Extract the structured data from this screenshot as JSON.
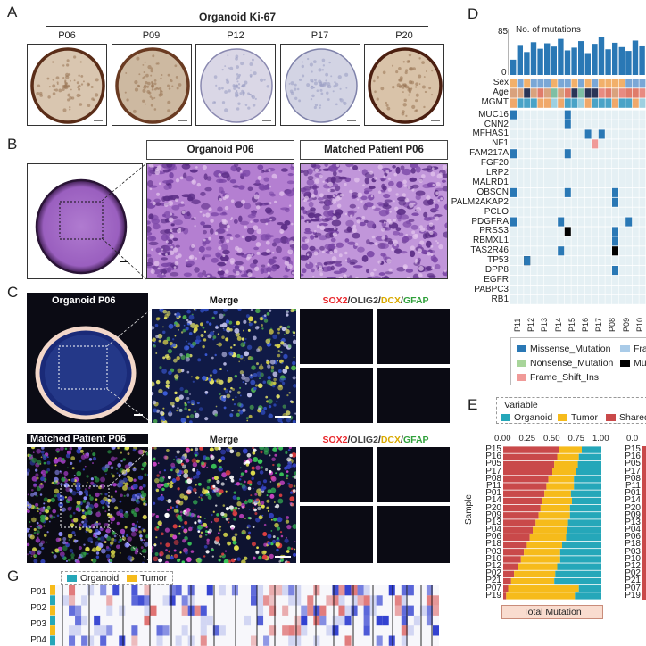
{
  "panel_labels": {
    "a": "A",
    "b": "B",
    "c": "C",
    "d": "D",
    "e": "E",
    "g": "G"
  },
  "panel_a": {
    "title": "Organoid  Ki-67",
    "samples": [
      "P06",
      "P09",
      "P12",
      "P17",
      "P20"
    ]
  },
  "panel_b": {
    "title_left": "Organoid P06",
    "title_right": "Matched Patient P06"
  },
  "panel_c": {
    "organoid_label": "Organoid P06",
    "patient_label": "Matched Patient P06",
    "merge_label": "Merge",
    "marker_sox2": "SOX2",
    "marker_olig2": "OLIG2",
    "marker_dcx": "DCX",
    "marker_gfap": "GFAP",
    "slash": "/",
    "marker_colors": {
      "sox2": "#e8262b",
      "olig2": "#ffffff",
      "dcx": "#f2c417",
      "gfap": "#3ec04b"
    }
  },
  "panel_d": {
    "mutations_label": "No. of mutations",
    "y_max": "85",
    "y_min": "0",
    "mutation_counts": [
      28,
      55,
      42,
      60,
      48,
      58,
      52,
      66,
      45,
      50,
      62,
      40,
      57,
      70,
      47,
      59,
      51,
      44,
      63,
      54
    ],
    "clinical_rows": [
      "Sex",
      "Age",
      "MGMT"
    ],
    "genes": [
      "MUC16",
      "CNN2",
      "MFHAS1",
      "NF1",
      "FAM217A",
      "FGF20",
      "LRP2",
      "MALRD1",
      "OBSCN",
      "PALM2AKAP2",
      "PCLO",
      "PDGFRA",
      "PRSS3",
      "RBMXL1",
      "TAS2R46",
      "TP53",
      "DPP8",
      "EGFR",
      "PABPC3",
      "RB1"
    ],
    "column_labels": [
      "P11",
      "P12",
      "P13",
      "P14",
      "P15",
      "P16",
      "P17",
      "P08",
      "P09",
      "P10"
    ],
    "legend": [
      "Missense_Mutation",
      "Nonsense_Mutation",
      "Frame_Shift_Ins",
      "Fram",
      "Mult"
    ],
    "colors": {
      "missense": "#2a78b5",
      "nonsense": "#a8d59a",
      "frameshift_ins": "#f09a98",
      "frame": "#a9cbe8",
      "multi": "#000000",
      "bar": "#2a78b5"
    }
  },
  "panel_e": {
    "variable_label": "Variable",
    "legend": [
      "Organoid",
      "Tumor",
      "Shared"
    ],
    "colors": {
      "organoid": "#25a7b9",
      "tumor": "#f6bb1b",
      "shared": "#c9494a"
    },
    "x_ticks": [
      "0.00",
      "0.25",
      "0.50",
      "0.75",
      "1.00"
    ],
    "x_tick_right": "0.0",
    "ylabel": "Sample",
    "footer": "Total Mutation",
    "chart_data": {
      "type": "bar",
      "categories": [
        "P15",
        "P16",
        "P05",
        "P17",
        "P08",
        "P11",
        "P01",
        "P14",
        "P20",
        "P09",
        "P13",
        "P04",
        "P06",
        "P18",
        "P03",
        "P10",
        "P12",
        "P02",
        "P21",
        "P07",
        "P19"
      ],
      "series": [
        {
          "name": "Shared",
          "values": [
            0.57,
            0.55,
            0.52,
            0.5,
            0.46,
            0.44,
            0.42,
            0.4,
            0.38,
            0.36,
            0.33,
            0.3,
            0.27,
            0.24,
            0.21,
            0.18,
            0.15,
            0.11,
            0.08,
            0.05,
            0.03
          ]
        },
        {
          "name": "Tumor",
          "values": [
            0.23,
            0.22,
            0.24,
            0.24,
            0.26,
            0.28,
            0.27,
            0.3,
            0.3,
            0.32,
            0.33,
            0.35,
            0.37,
            0.36,
            0.37,
            0.4,
            0.4,
            0.42,
            0.44,
            0.72,
            0.7
          ]
        },
        {
          "name": "Organoid",
          "values": [
            0.2,
            0.23,
            0.24,
            0.26,
            0.28,
            0.28,
            0.31,
            0.3,
            0.32,
            0.32,
            0.34,
            0.35,
            0.36,
            0.4,
            0.42,
            0.42,
            0.45,
            0.47,
            0.48,
            0.23,
            0.27
          ]
        }
      ],
      "xlim": [
        0,
        1
      ],
      "stacked": true
    }
  },
  "panel_g": {
    "legend": [
      "Organoid",
      "Tumor"
    ],
    "rows": [
      "P01",
      "P02",
      "P03",
      "P04"
    ]
  }
}
